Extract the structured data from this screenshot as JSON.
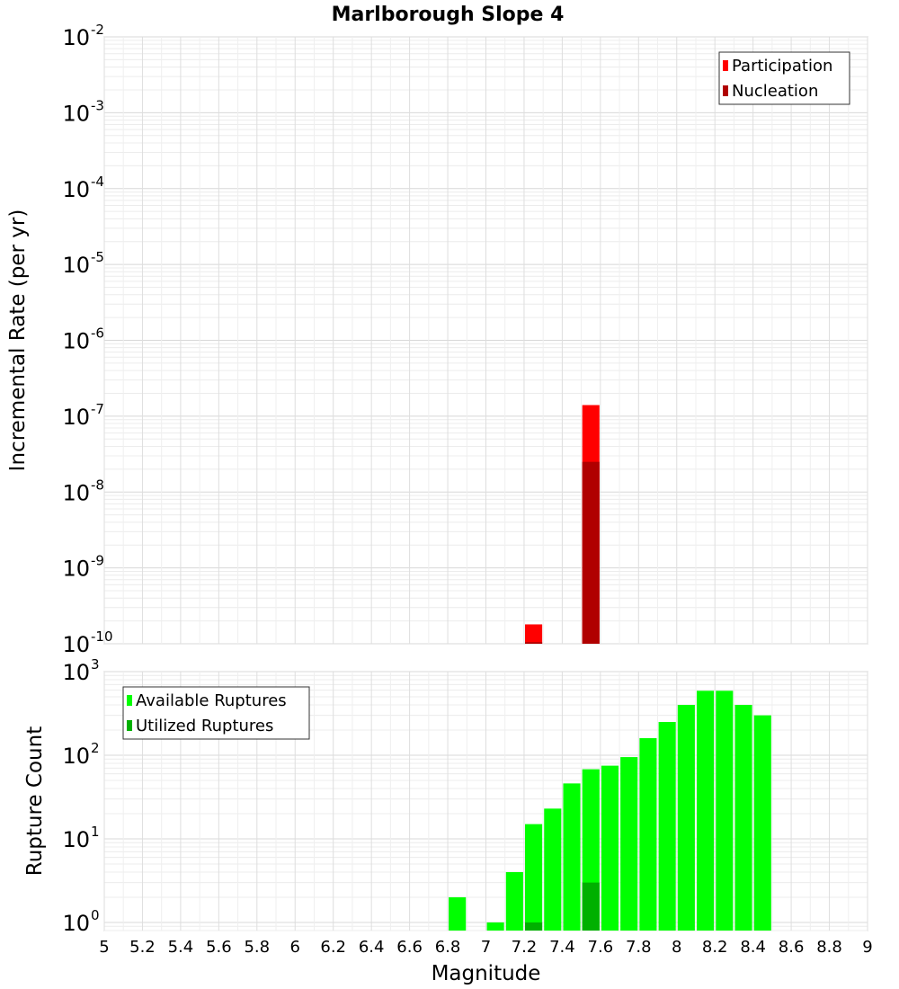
{
  "chart_data": [
    {
      "type": "bar",
      "title": "Marlborough Slope 4",
      "xlabel": "",
      "ylabel": "Incremental Rate (per yr)",
      "y_scale": "log",
      "ylim": [
        1e-10,
        0.01
      ],
      "xlim": [
        5,
        9
      ],
      "bar_width": 0.09,
      "grid": true,
      "legend_position": "top-right",
      "series": [
        {
          "name": "Participation",
          "color": "#ff0000",
          "points": [
            {
              "x": 7.25,
              "y": 1.8e-10
            },
            {
              "x": 7.55,
              "y": 1.4e-07
            }
          ]
        },
        {
          "name": "Nucleation",
          "color": "#b00000",
          "points": [
            {
              "x": 7.25,
              "y": 1.05e-10
            },
            {
              "x": 7.55,
              "y": 2.5e-08
            }
          ]
        }
      ],
      "y_ticks": [
        {
          "base": "10",
          "exp": "-2",
          "v": 0.01
        },
        {
          "base": "10",
          "exp": "-3",
          "v": 0.001
        },
        {
          "base": "10",
          "exp": "-4",
          "v": 0.0001
        },
        {
          "base": "10",
          "exp": "-5",
          "v": 1e-05
        },
        {
          "base": "10",
          "exp": "-6",
          "v": 1e-06
        },
        {
          "base": "10",
          "exp": "-7",
          "v": 1e-07
        },
        {
          "base": "10",
          "exp": "-8",
          "v": 1e-08
        },
        {
          "base": "10",
          "exp": "-9",
          "v": 1e-09
        },
        {
          "base": "10",
          "exp": "-10",
          "v": 1e-10
        }
      ]
    },
    {
      "type": "bar",
      "title": "",
      "xlabel": "Magnitude",
      "ylabel": "Rupture Count",
      "y_scale": "log",
      "ylim": [
        0.8,
        1000
      ],
      "xlim": [
        5,
        9
      ],
      "bar_width": 0.09,
      "grid": true,
      "legend_position": "top-left",
      "series": [
        {
          "name": "Available Ruptures",
          "color": "#00ff00",
          "points": [
            {
              "x": 6.85,
              "y": 2
            },
            {
              "x": 7.05,
              "y": 1
            },
            {
              "x": 7.15,
              "y": 4
            },
            {
              "x": 7.25,
              "y": 15
            },
            {
              "x": 7.35,
              "y": 23
            },
            {
              "x": 7.45,
              "y": 46
            },
            {
              "x": 7.55,
              "y": 68
            },
            {
              "x": 7.65,
              "y": 75
            },
            {
              "x": 7.75,
              "y": 95
            },
            {
              "x": 7.85,
              "y": 160
            },
            {
              "x": 7.95,
              "y": 250
            },
            {
              "x": 8.05,
              "y": 400
            },
            {
              "x": 8.15,
              "y": 590
            },
            {
              "x": 8.25,
              "y": 590
            },
            {
              "x": 8.35,
              "y": 400
            },
            {
              "x": 8.45,
              "y": 300
            }
          ]
        },
        {
          "name": "Utilized Ruptures",
          "color": "#00b000",
          "points": [
            {
              "x": 7.25,
              "y": 1
            },
            {
              "x": 7.55,
              "y": 3
            }
          ]
        }
      ],
      "y_ticks": [
        {
          "base": "10",
          "exp": "3",
          "v": 1000
        },
        {
          "base": "10",
          "exp": "2",
          "v": 100
        },
        {
          "base": "10",
          "exp": "1",
          "v": 10
        },
        {
          "base": "10",
          "exp": "0",
          "v": 1
        }
      ],
      "x_ticks": [
        "5",
        "5.2",
        "5.4",
        "5.6",
        "5.8",
        "6",
        "6.2",
        "6.4",
        "6.6",
        "6.8",
        "7",
        "7.2",
        "7.4",
        "7.6",
        "7.8",
        "8",
        "8.2",
        "8.4",
        "8.6",
        "8.8",
        "9"
      ]
    }
  ]
}
